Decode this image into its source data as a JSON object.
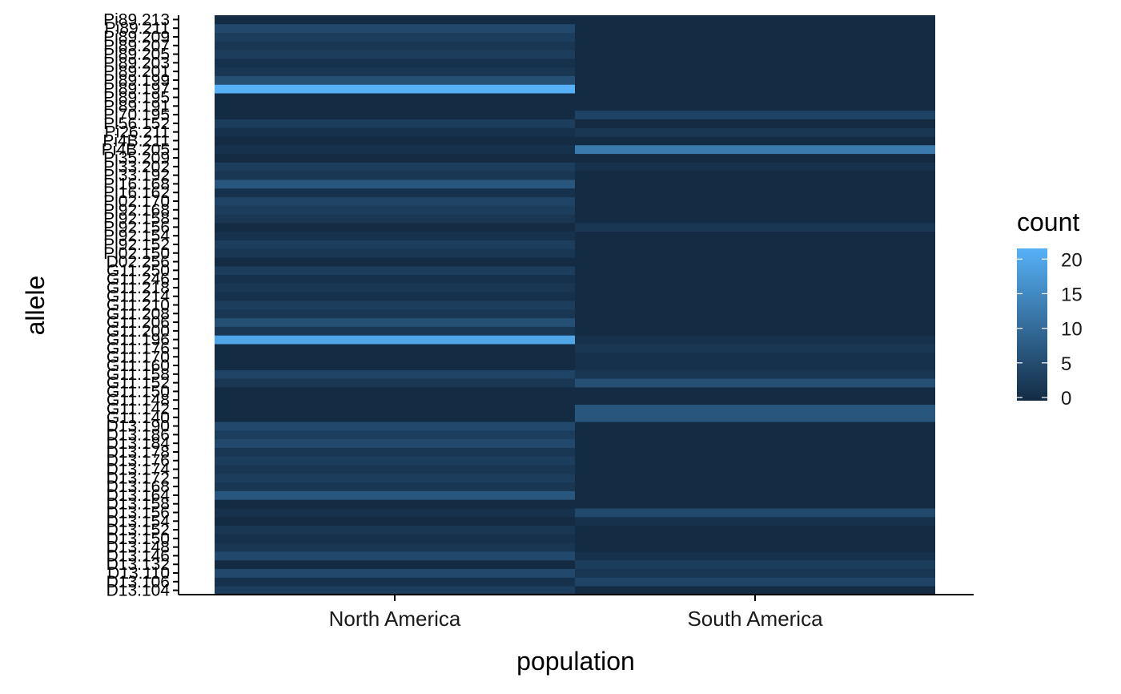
{
  "chart_data": {
    "type": "heatmap",
    "xlabel": "population",
    "ylabel": "allele",
    "legend_title": "count",
    "legend_placement": "right",
    "grid": false,
    "x_categories": [
      "North America",
      "South America"
    ],
    "y_categories": [
      "D13.104",
      "D13.106",
      "D13.110",
      "D13.132",
      "D13.146",
      "D13.148",
      "D13.150",
      "D13.152",
      "D13.154",
      "D13.156",
      "D13.158",
      "D13.164",
      "D13.168",
      "D13.172",
      "D13.174",
      "D13.176",
      "D13.178",
      "D13.184",
      "D13.186",
      "D13.190",
      "G11.140",
      "G11.142",
      "G11.148",
      "G11.150",
      "G11.152",
      "G11.158",
      "G11.160",
      "G11.170",
      "G11.176",
      "G11.196",
      "G11.200",
      "G11.206",
      "G11.208",
      "G11.210",
      "G11.214",
      "G11.218",
      "G11.246",
      "G11.250",
      "D02.256",
      "Pi02.150",
      "Pi92.152",
      "Pi92.154",
      "Pi92.156",
      "Pi92.158",
      "Pi92.168",
      "Pi02.170",
      "Pi16.162",
      "Pi16.168",
      "Pi33.192",
      "Pi33.202",
      "Pi35.209",
      "Pi4B.205",
      "Pi4B.211",
      "Pi26.211",
      "Pi56.152",
      "Pi70.195",
      "Pi89.191",
      "Pi89.195",
      "Pi89.197",
      "Pi89.199",
      "Pi89.201",
      "Pi89.203",
      "Pi89.205",
      "Pi89.207",
      "Pi89.209",
      "Pi89.211",
      "Pi89.213"
    ],
    "values": {
      "North America": [
        3,
        1,
        5,
        0,
        5,
        2,
        1,
        2,
        0,
        1,
        0,
        7,
        2,
        3,
        2,
        3,
        2,
        5,
        3,
        5,
        0,
        0,
        0,
        0,
        2,
        4,
        0,
        0,
        0,
        20,
        2,
        6,
        2,
        3,
        1,
        2,
        1,
        3,
        0,
        2,
        3,
        1,
        0,
        2,
        3,
        4,
        1,
        7,
        2,
        3,
        0,
        1,
        0,
        1,
        3,
        0,
        0,
        0,
        22,
        6,
        2,
        1,
        3,
        2,
        3,
        5,
        0
      ],
      "South America": [
        0,
        4,
        2,
        3,
        1,
        0,
        0,
        0,
        1,
        5,
        0,
        0,
        0,
        0,
        0,
        0,
        0,
        0,
        0,
        0,
        7,
        7,
        0,
        0,
        6,
        2,
        1,
        1,
        2,
        1,
        0,
        0,
        0,
        0,
        0,
        0,
        0,
        0,
        0,
        0,
        0,
        0,
        2,
        0,
        0,
        0,
        0,
        0,
        0,
        1,
        0,
        13,
        0,
        2,
        0,
        4,
        0,
        0,
        0,
        0,
        0,
        0,
        0,
        0,
        0,
        0,
        0
      ]
    },
    "color_scale": {
      "low": "#132B43",
      "high": "#56B1F7",
      "min": 0,
      "max": 22,
      "breaks": [
        0,
        5,
        10,
        15,
        20
      ]
    }
  }
}
